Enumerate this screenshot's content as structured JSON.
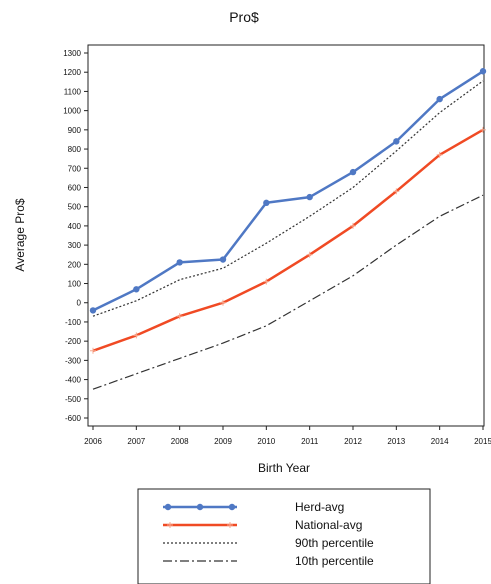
{
  "chart_data": {
    "type": "line",
    "title": "Pro$",
    "xlabel": "Birth Year",
    "ylabel": "Average Pro$",
    "categories": [
      "2006",
      "2007",
      "2008",
      "2009",
      "2010",
      "2011",
      "2012",
      "2013",
      "2014",
      "2015"
    ],
    "ylim": [
      -600,
      1300
    ],
    "ytick_step": 100,
    "grid": false,
    "legend_position": "bottom",
    "series": [
      {
        "name": "Herd-avg",
        "values": [
          -40,
          70,
          210,
          225,
          520,
          550,
          680,
          840,
          1060,
          1205
        ],
        "color": "#4f78c4",
        "style": "solid-markers"
      },
      {
        "name": "National-avg",
        "values": [
          -250,
          -170,
          -70,
          0,
          110,
          250,
          400,
          580,
          770,
          900
        ],
        "color": "#f04a24",
        "style": "solid-cross"
      },
      {
        "name": "90th percentile",
        "values": [
          -70,
          10,
          120,
          180,
          310,
          450,
          600,
          790,
          990,
          1155
        ],
        "color": "#333333",
        "style": "dotted"
      },
      {
        "name": "10th percentile",
        "values": [
          -450,
          -370,
          -290,
          -210,
          -120,
          10,
          140,
          300,
          450,
          560
        ],
        "color": "#333333",
        "style": "dashdot"
      }
    ]
  }
}
